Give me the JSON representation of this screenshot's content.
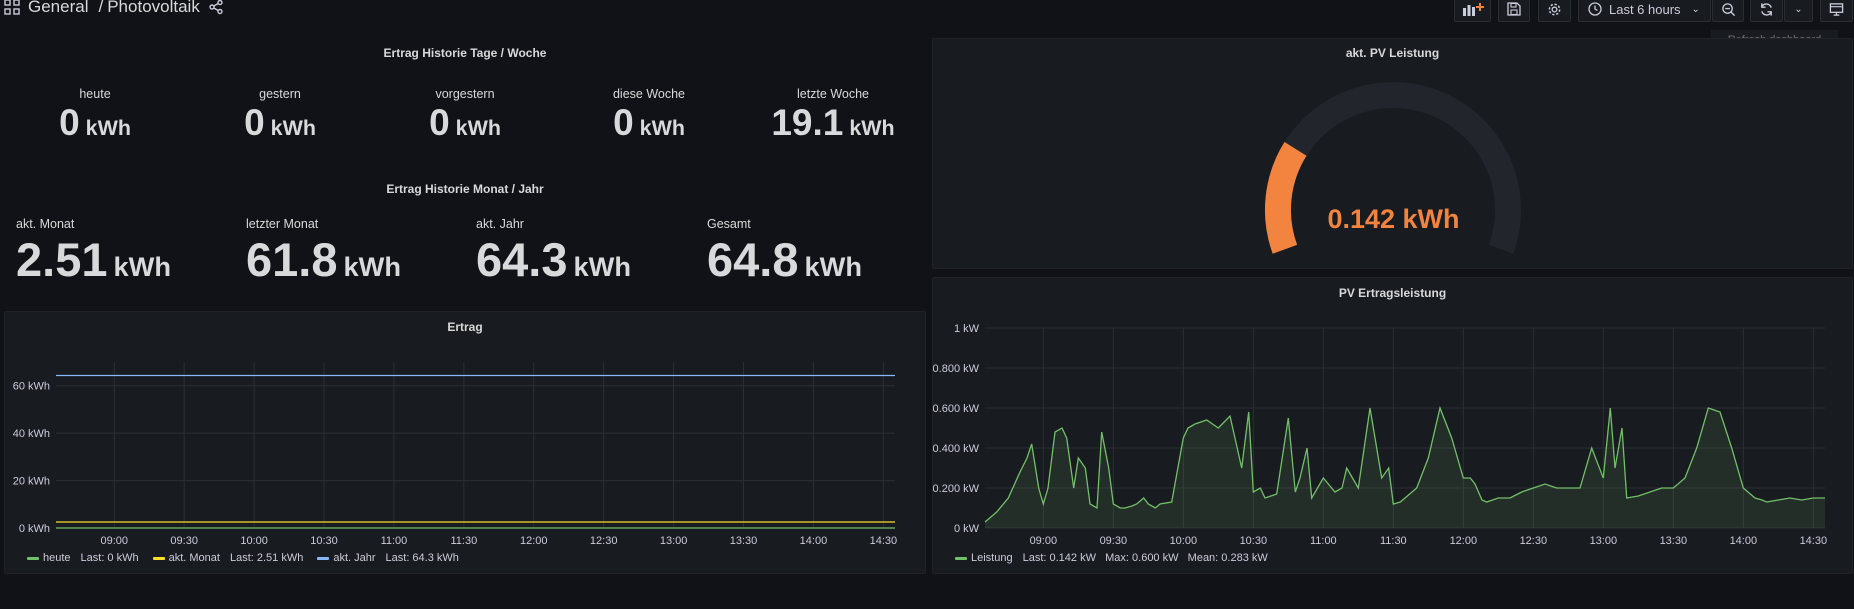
{
  "header": {
    "folder": "General",
    "separator": "/",
    "dashboard": "Photovoltaik",
    "time_range": "Last 6 hours",
    "tooltip": "Refresh dashboard"
  },
  "panels": {
    "tage_woche": {
      "title": "Ertrag Historie Tage / Woche",
      "stats": [
        {
          "label": "heute",
          "value": "0",
          "unit": "kWh"
        },
        {
          "label": "gestern",
          "value": "0",
          "unit": "kWh"
        },
        {
          "label": "vorgestern",
          "value": "0",
          "unit": "kWh"
        },
        {
          "label": "diese Woche",
          "value": "0",
          "unit": "kWh"
        },
        {
          "label": "letzte Woche",
          "value": "19.1",
          "unit": "kWh"
        }
      ]
    },
    "monat_jahr": {
      "title": "Ertrag Historie Monat / Jahr",
      "stats": [
        {
          "label": "akt. Monat",
          "value": "2.51",
          "unit": "kWh"
        },
        {
          "label": "letzter Monat",
          "value": "61.8",
          "unit": "kWh"
        },
        {
          "label": "akt. Jahr",
          "value": "64.3",
          "unit": "kWh"
        },
        {
          "label": "Gesamt",
          "value": "64.8",
          "unit": "kWh"
        }
      ]
    },
    "gauge": {
      "title": "akt. PV Leistung",
      "value": 0.142,
      "display": "0.142 kWh",
      "min": 0,
      "max": 0.6,
      "color": "#f2843f"
    },
    "ertrag": {
      "title": "Ertrag",
      "legend": [
        {
          "name": "heute",
          "text": "Last: 0 kWh",
          "color": "#73bf69"
        },
        {
          "name": "akt. Monat",
          "text": "Last: 2.51 kWh",
          "color": "#fade2a"
        },
        {
          "name": "akt. Jahr",
          "text": "Last: 64.3 kWh",
          "color": "#8ab8ff"
        }
      ]
    },
    "pv": {
      "title": "PV Ertragsleistung",
      "legend": [
        {
          "name": "Leistung",
          "text": "Last: 0.142 kW   Max: 0.600 kW   Mean: 0.283 kW",
          "color": "#73bf69"
        }
      ]
    }
  },
  "chart_data": [
    {
      "type": "line",
      "title": "Ertrag",
      "x_ticks": [
        "09:00",
        "09:30",
        "10:00",
        "10:30",
        "11:00",
        "11:30",
        "12:00",
        "12:30",
        "13:00",
        "13:30",
        "14:00",
        "14:30"
      ],
      "y_ticks": [
        "0 kWh",
        "20 kWh",
        "40 kWh",
        "60 kWh"
      ],
      "ylim": [
        0,
        70
      ],
      "xlim": [
        "08:35",
        "14:35"
      ],
      "series": [
        {
          "name": "heute",
          "color": "#73bf69",
          "x": [
            "08:35",
            "14:35"
          ],
          "values": [
            0,
            0
          ]
        },
        {
          "name": "akt. Monat",
          "color": "#fade2a",
          "x": [
            "08:35",
            "14:35"
          ],
          "values": [
            2.51,
            2.51
          ]
        },
        {
          "name": "akt. Jahr",
          "color": "#8ab8ff",
          "x": [
            "08:35",
            "14:35"
          ],
          "values": [
            64.3,
            64.3
          ]
        }
      ]
    },
    {
      "type": "area",
      "title": "PV Ertragsleistung",
      "x_ticks": [
        "09:00",
        "09:30",
        "10:00",
        "10:30",
        "11:00",
        "11:30",
        "12:00",
        "12:30",
        "13:00",
        "13:30",
        "14:00",
        "14:30"
      ],
      "y_ticks": [
        "0 kW",
        "0.200 kW",
        "0.400 kW",
        "0.600 kW",
        "0.800 kW",
        "1 kW"
      ],
      "ylim": [
        0,
        1
      ],
      "xlim": [
        "08:35",
        "14:35"
      ],
      "series": [
        {
          "name": "Leistung",
          "color": "#73bf69",
          "x": [
            "08:35",
            "08:40",
            "08:45",
            "08:50",
            "08:53",
            "08:55",
            "08:58",
            "09:00",
            "09:02",
            "09:05",
            "09:08",
            "09:10",
            "09:13",
            "09:15",
            "09:18",
            "09:20",
            "09:23",
            "09:25",
            "09:28",
            "09:30",
            "09:33",
            "09:35",
            "09:38",
            "09:40",
            "09:43",
            "09:45",
            "09:48",
            "09:50",
            "09:55",
            "10:00",
            "10:02",
            "10:05",
            "10:10",
            "10:15",
            "10:20",
            "10:25",
            "10:28",
            "10:30",
            "10:33",
            "10:35",
            "10:40",
            "10:45",
            "10:48",
            "10:50",
            "10:53",
            "10:55",
            "11:00",
            "11:05",
            "11:08",
            "11:10",
            "11:15",
            "11:20",
            "11:25",
            "11:28",
            "11:30",
            "11:33",
            "11:35",
            "11:40",
            "11:45",
            "11:50",
            "11:55",
            "12:00",
            "12:03",
            "12:05",
            "12:08",
            "12:10",
            "12:15",
            "12:20",
            "12:25",
            "12:30",
            "12:35",
            "12:40",
            "12:45",
            "12:50",
            "12:55",
            "13:00",
            "13:03",
            "13:05",
            "13:08",
            "13:10",
            "13:15",
            "13:20",
            "13:25",
            "13:30",
            "13:35",
            "13:40",
            "13:45",
            "13:50",
            "13:55",
            "14:00",
            "14:03",
            "14:05",
            "14:08",
            "14:10",
            "14:15",
            "14:20",
            "14:25",
            "14:30",
            "14:35"
          ],
          "values": [
            0.03,
            0.08,
            0.15,
            0.28,
            0.35,
            0.42,
            0.2,
            0.12,
            0.2,
            0.48,
            0.5,
            0.45,
            0.2,
            0.35,
            0.3,
            0.12,
            0.1,
            0.48,
            0.3,
            0.12,
            0.1,
            0.1,
            0.11,
            0.12,
            0.15,
            0.12,
            0.1,
            0.12,
            0.13,
            0.45,
            0.5,
            0.52,
            0.54,
            0.5,
            0.56,
            0.3,
            0.58,
            0.18,
            0.2,
            0.15,
            0.17,
            0.55,
            0.18,
            0.25,
            0.4,
            0.15,
            0.25,
            0.18,
            0.2,
            0.3,
            0.2,
            0.6,
            0.25,
            0.3,
            0.12,
            0.13,
            0.15,
            0.2,
            0.35,
            0.6,
            0.45,
            0.25,
            0.25,
            0.22,
            0.14,
            0.13,
            0.15,
            0.15,
            0.18,
            0.2,
            0.22,
            0.2,
            0.2,
            0.2,
            0.4,
            0.25,
            0.6,
            0.3,
            0.5,
            0.15,
            0.16,
            0.18,
            0.2,
            0.2,
            0.25,
            0.4,
            0.6,
            0.58,
            0.4,
            0.2,
            0.17,
            0.15,
            0.14,
            0.13,
            0.14,
            0.15,
            0.14,
            0.15,
            0.15
          ]
        }
      ]
    }
  ]
}
